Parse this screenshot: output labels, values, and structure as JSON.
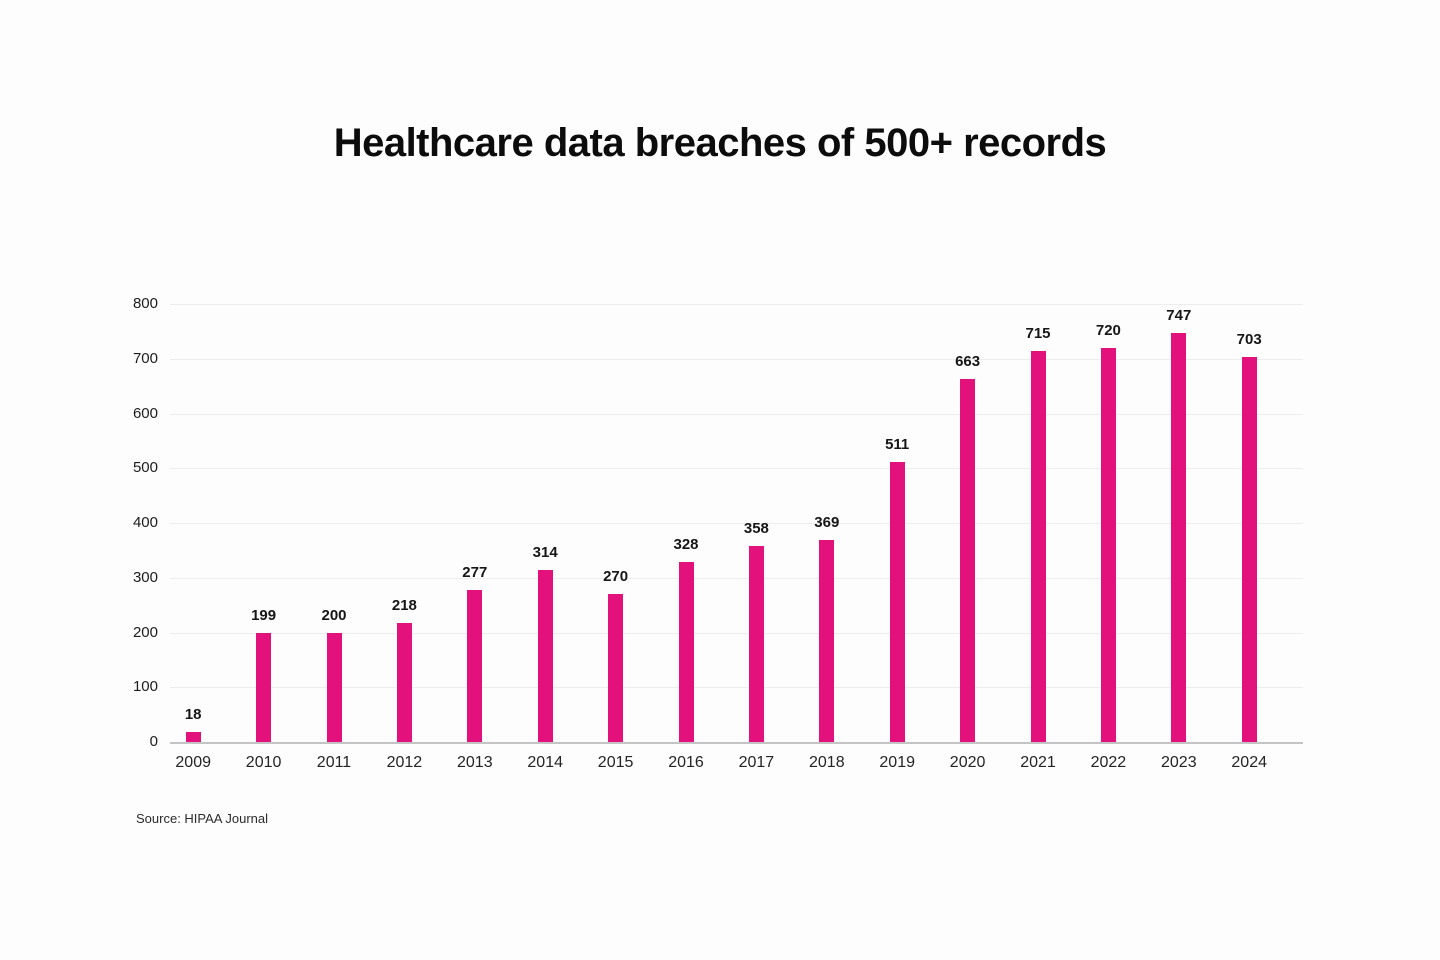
{
  "title": "Healthcare data breaches of 500+ records",
  "source": "Source: HIPAA Journal",
  "chart_data": {
    "type": "bar",
    "title": "Healthcare data breaches of 500+ records",
    "categories": [
      "2009",
      "2010",
      "2011",
      "2012",
      "2013",
      "2014",
      "2015",
      "2016",
      "2017",
      "2018",
      "2019",
      "2020",
      "2021",
      "2022",
      "2023",
      "2024"
    ],
    "values": [
      18,
      199,
      200,
      218,
      277,
      314,
      270,
      328,
      358,
      369,
      511,
      663,
      715,
      720,
      747,
      703
    ],
    "xlabel": "",
    "ylabel": "",
    "ylim": [
      0,
      800
    ],
    "ytick_step": 100,
    "grid": true,
    "legend": "none",
    "bar_color": "#e3117c",
    "gridline_color": "#ededed",
    "axis_line_color": "#c4c4c4",
    "value_label_color": "#161616",
    "tick_label_color": "#1c1c1c",
    "source": "Source: HIPAA Journal"
  }
}
